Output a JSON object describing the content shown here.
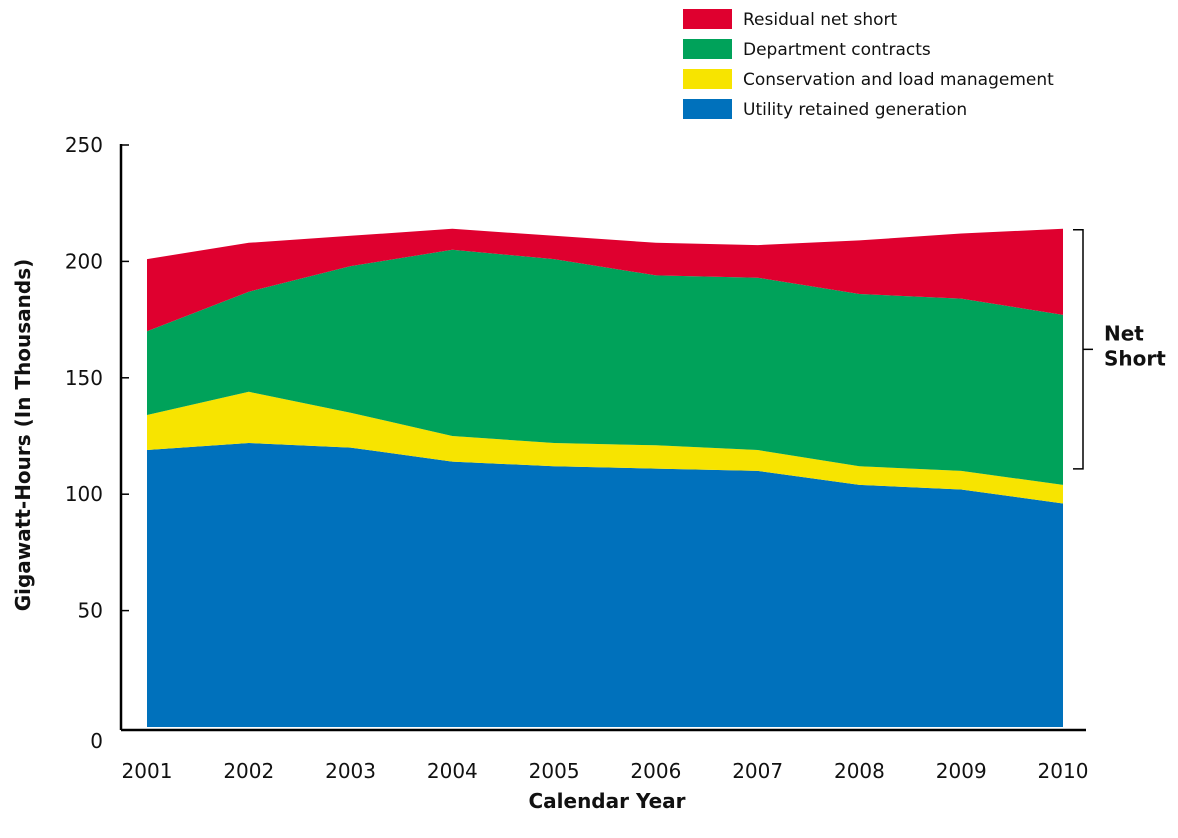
{
  "chart_data": {
    "type": "area",
    "stacked": true,
    "categories": [
      "2001",
      "2002",
      "2003",
      "2004",
      "2005",
      "2006",
      "2007",
      "2008",
      "2009",
      "2010"
    ],
    "xlabel": "Calendar Year",
    "ylabel": "Gigawatt-Hours (In Thousands)",
    "ylim": [
      0,
      250
    ],
    "yticks": [
      "0",
      "50",
      "100",
      "150",
      "200",
      "250"
    ],
    "grid": false,
    "legend_position": "top-right",
    "series": [
      {
        "name": "Utility retained generation",
        "color": "#0071bc",
        "values": [
          119,
          122,
          120,
          114,
          112,
          111,
          110,
          104,
          102,
          96
        ]
      },
      {
        "name": "Conservation and load management",
        "color": "#f7e400",
        "values": [
          15,
          22,
          15,
          11,
          10,
          10,
          9,
          8,
          8,
          8
        ]
      },
      {
        "name": "Department contracts",
        "color": "#00a25a",
        "values": [
          36,
          43,
          63,
          80,
          79,
          73,
          74,
          74,
          74,
          73
        ]
      },
      {
        "name": "Residual net short",
        "color": "#df002f",
        "values": [
          31,
          21,
          13,
          9,
          10,
          14,
          14,
          23,
          28,
          37
        ]
      }
    ],
    "annotation": {
      "lines": [
        "Net",
        "Short"
      ]
    }
  }
}
